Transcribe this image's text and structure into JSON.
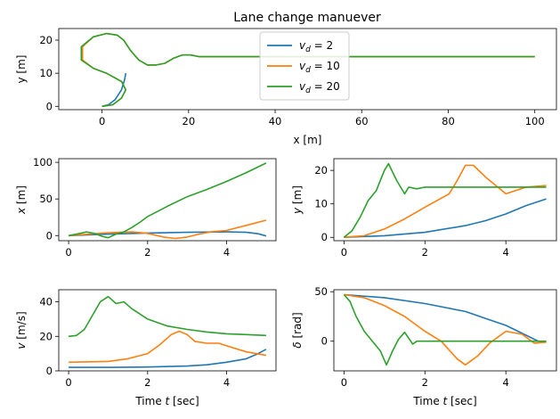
{
  "colors": {
    "c1": "#1f77b4",
    "c2": "#ff7f0e",
    "c3": "#2ca02c"
  },
  "chart_data": [
    {
      "type": "line",
      "title": "Lane change manuever",
      "xlabel": "x [m]",
      "ylabel": "y [m]",
      "xlim": [
        -10,
        105
      ],
      "ylim": [
        -1,
        23.5
      ],
      "xticks": [
        0,
        20,
        40,
        60,
        80,
        100
      ],
      "yticks": [
        0,
        10,
        20
      ],
      "legend": {
        "position": "top-center",
        "entries": [
          "v_d = 2",
          "v_d = 10",
          "v_d = 20"
        ]
      },
      "series": [
        {
          "name": "v_d = 2",
          "color": "c1",
          "x": [
            0,
            1.5,
            3,
            4.5,
            5.2,
            5.5
          ],
          "y": [
            0,
            0.5,
            2,
            5,
            8,
            10
          ]
        },
        {
          "name": "v_d = 10",
          "color": "c2",
          "x": [
            0,
            2.5,
            4.5,
            5.5,
            4.5,
            1,
            -2,
            -4.5,
            -4.5,
            -2,
            1,
            3.5,
            5,
            6.5,
            8.5,
            10.5,
            12.5,
            14.5,
            16.5,
            18.5,
            20.5,
            22.5,
            25,
            30,
            40,
            60,
            80,
            100
          ],
          "y": [
            0,
            0.5,
            2.5,
            5,
            7.5,
            10,
            11.5,
            14,
            18,
            21,
            22,
            21.5,
            20,
            17,
            14,
            12.5,
            12.5,
            13,
            14.5,
            15.5,
            15.5,
            15,
            15,
            15,
            15,
            15,
            15,
            15
          ]
        },
        {
          "name": "v_d = 20",
          "color": "c3",
          "x": [
            0,
            2.5,
            4.5,
            5.5,
            4.5,
            1,
            -2,
            -4.8,
            -4.8,
            -2,
            1,
            3.5,
            5,
            6.5,
            8.5,
            10.5,
            12.5,
            14.5,
            16.5,
            18.5,
            20.5,
            22.5,
            25,
            30,
            40,
            60,
            80,
            100
          ],
          "y": [
            0,
            0.5,
            2.5,
            5,
            7.5,
            10,
            11.5,
            14,
            18,
            21,
            22,
            21.5,
            20,
            17,
            14,
            12.5,
            12.5,
            13,
            14.5,
            15.5,
            15.5,
            15,
            15,
            15,
            15,
            15,
            15,
            15
          ]
        }
      ]
    },
    {
      "type": "line",
      "ylabel": "x [m]",
      "xlim": [
        -0.25,
        5.25
      ],
      "ylim": [
        -7,
        105
      ],
      "xticks": [
        0,
        2,
        4
      ],
      "yticks": [
        0,
        50,
        100
      ],
      "series": [
        {
          "name": "v_d = 2",
          "color": "c1",
          "x": [
            0,
            1,
            2,
            3,
            4,
            4.5,
            4.8,
            5
          ],
          "y": [
            0,
            2,
            3.5,
            4.5,
            5,
            4.5,
            2.5,
            -0.5
          ]
        },
        {
          "name": "v_d = 10",
          "color": "c2",
          "x": [
            0,
            1,
            1.6,
            2,
            2.4,
            2.7,
            3,
            3.3,
            3.6,
            4,
            4.5,
            5
          ],
          "y": [
            0,
            4,
            5,
            3,
            -2,
            -4,
            -2,
            2,
            5,
            7,
            14,
            21
          ]
        },
        {
          "name": "v_d = 20",
          "color": "c3",
          "x": [
            0,
            0.25,
            0.45,
            0.65,
            0.85,
            1,
            1.2,
            1.4,
            1.6,
            1.8,
            2,
            2.5,
            3,
            3.5,
            4,
            4.5,
            5
          ],
          "y": [
            0,
            2.5,
            5,
            3,
            -1,
            -3,
            2,
            5,
            11,
            18,
            26,
            40,
            53,
            63,
            74,
            86,
            99
          ]
        }
      ]
    },
    {
      "type": "line",
      "ylabel": "y [m]",
      "xlim": [
        -0.25,
        5.25
      ],
      "ylim": [
        -1,
        23.5
      ],
      "xticks": [
        0,
        2,
        4
      ],
      "yticks": [
        0,
        10,
        20
      ],
      "series": [
        {
          "name": "v_d = 2",
          "color": "c1",
          "x": [
            0,
            1,
            2,
            3,
            3.5,
            4,
            4.5,
            5
          ],
          "y": [
            0,
            0.5,
            1.5,
            3.5,
            5,
            7,
            9.5,
            11.5
          ]
        },
        {
          "name": "v_d = 10",
          "color": "c2",
          "x": [
            0,
            0.5,
            1,
            1.5,
            2,
            2.3,
            2.6,
            2.8,
            3,
            3.2,
            3.5,
            4,
            4.5,
            5
          ],
          "y": [
            0,
            0.5,
            2.5,
            5.5,
            9,
            11,
            13,
            17,
            21.5,
            21.5,
            18,
            13,
            15,
            15.5
          ]
        },
        {
          "name": "v_d = 20",
          "color": "c3",
          "x": [
            0,
            0.2,
            0.4,
            0.6,
            0.8,
            1,
            1.1,
            1.3,
            1.5,
            1.6,
            1.8,
            2,
            2.5,
            3,
            4,
            5
          ],
          "y": [
            0,
            2,
            6,
            11,
            14,
            20,
            22,
            17,
            13,
            15,
            14.5,
            15,
            15,
            15,
            15,
            15
          ]
        }
      ]
    },
    {
      "type": "line",
      "ylabel": "v [m/s]",
      "xlabel": "Time t [sec]",
      "xlim": [
        -0.25,
        5.25
      ],
      "ylim": [
        0,
        47
      ],
      "xticks": [
        0,
        2,
        4
      ],
      "yticks": [
        0,
        20,
        40
      ],
      "series": [
        {
          "name": "v_d = 2",
          "color": "c1",
          "x": [
            0,
            1,
            2,
            3,
            3.5,
            4,
            4.5,
            4.8,
            5
          ],
          "y": [
            2,
            2,
            2.2,
            2.8,
            3.5,
            5,
            7,
            10,
            12.5
          ]
        },
        {
          "name": "v_d = 10",
          "color": "c2",
          "x": [
            0,
            1,
            1.5,
            2,
            2.3,
            2.6,
            2.8,
            3,
            3.2,
            3.5,
            3.8,
            4,
            4.5,
            5
          ],
          "y": [
            5,
            5.5,
            7,
            10,
            15,
            21,
            23,
            21,
            17,
            16,
            16,
            14.5,
            11,
            9
          ]
        },
        {
          "name": "v_d = 20",
          "color": "c3",
          "x": [
            0,
            0.2,
            0.4,
            0.6,
            0.8,
            1,
            1.2,
            1.4,
            1.6,
            1.8,
            2,
            2.5,
            3,
            3.5,
            4,
            4.5,
            5
          ],
          "y": [
            20,
            20.5,
            24,
            32,
            40,
            43,
            39,
            40,
            36,
            33,
            30,
            26,
            24,
            22.5,
            21.5,
            21,
            20.5
          ]
        }
      ]
    },
    {
      "type": "line",
      "ylabel": "δ [rad]",
      "xlabel": "Time t [sec]",
      "xlim": [
        -0.25,
        5.25
      ],
      "ylim": [
        -30,
        52
      ],
      "xticks": [
        0,
        2,
        4
      ],
      "yticks": [
        0,
        50
      ],
      "series": [
        {
          "name": "v_d = 2",
          "color": "c1",
          "x": [
            0,
            1,
            2,
            3,
            3.5,
            4,
            4.5,
            4.8,
            5
          ],
          "y": [
            47,
            44,
            38,
            30,
            23,
            16,
            6,
            0,
            -1
          ]
        },
        {
          "name": "v_d = 10",
          "color": "c2",
          "x": [
            0,
            0.5,
            1,
            1.5,
            2,
            2.4,
            2.8,
            3,
            3.3,
            3.6,
            4,
            4.4,
            4.7,
            5
          ],
          "y": [
            47,
            44,
            36,
            25,
            10,
            0,
            -18,
            -24,
            -15,
            -2,
            10,
            7,
            -2,
            -1
          ]
        },
        {
          "name": "v_d = 20",
          "color": "c3",
          "x": [
            0,
            0.15,
            0.3,
            0.5,
            0.7,
            0.9,
            1.05,
            1.2,
            1.35,
            1.5,
            1.6,
            1.7,
            1.8,
            2,
            2.5,
            5
          ],
          "y": [
            47,
            40,
            25,
            10,
            0,
            -10,
            -24,
            -10,
            2,
            9,
            3,
            -3,
            0,
            0,
            0,
            0
          ]
        }
      ]
    }
  ]
}
